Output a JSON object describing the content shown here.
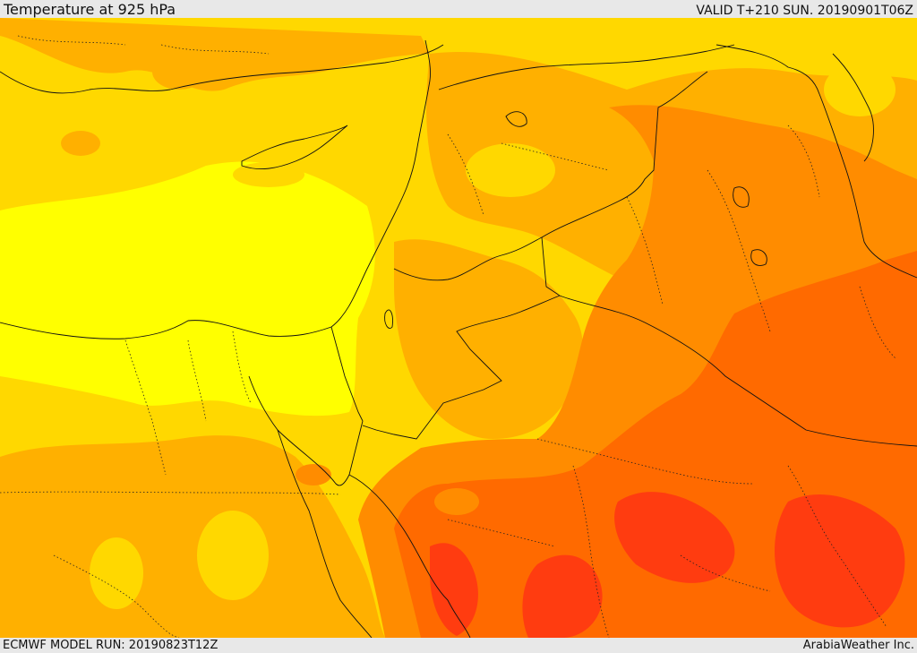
{
  "header": {
    "title": "Temperature at 925 hPa",
    "valid": "VALID T+210 SUN. 20190901T06Z"
  },
  "footer": {
    "model_run": "ECMWF MODEL RUN: 20190823T12Z",
    "credit": "ArabiaWeather Inc."
  },
  "map": {
    "field": "temperature",
    "level": "925 hPa",
    "region": "Eastern Mediterranean and Middle East",
    "palette": {
      "coolest": "#ffff00",
      "cool": "#ffd800",
      "mild": "#ffb000",
      "warm": "#ff8c00",
      "hot": "#ff6a00",
      "hottest": "#ff3c10",
      "border_line": "#111111"
    }
  }
}
